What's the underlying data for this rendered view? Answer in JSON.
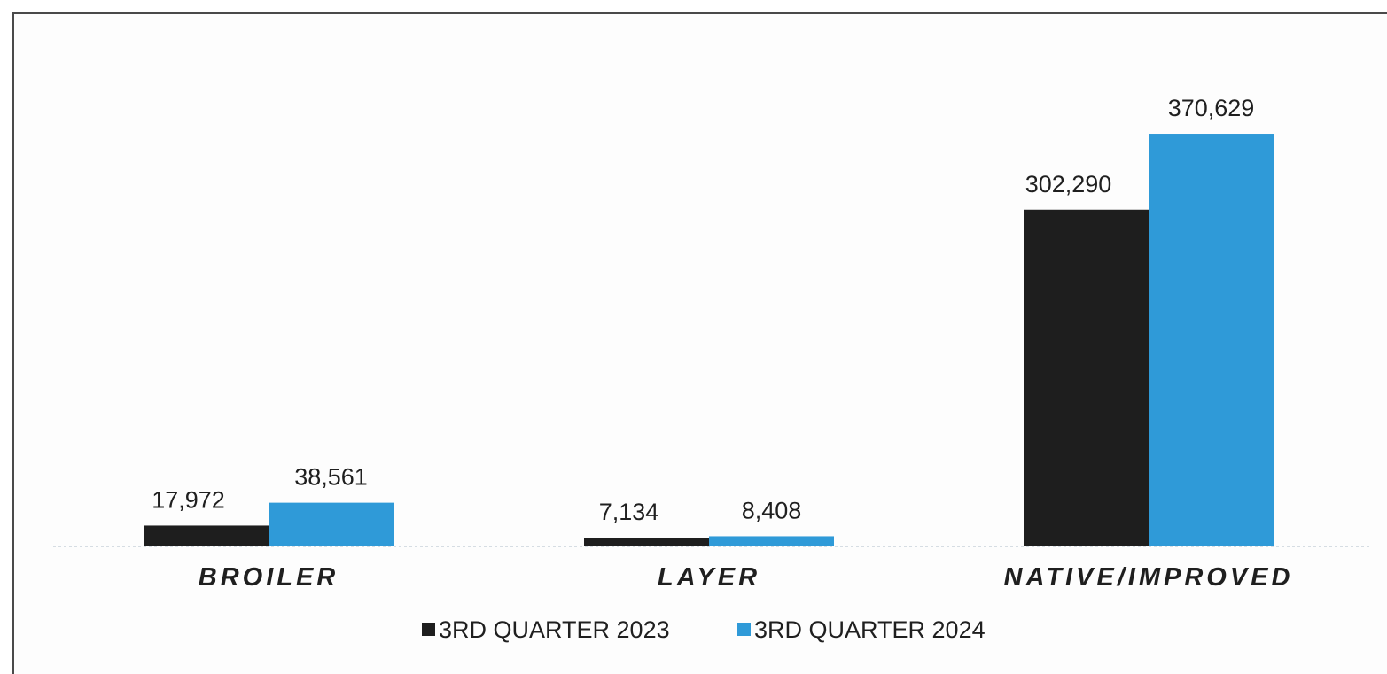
{
  "chart_data": {
    "type": "bar",
    "categories": [
      "BROILER",
      "LAYER",
      "NATIVE/IMPROVED"
    ],
    "series": [
      {
        "name": "3RD QUARTER 2023",
        "values": [
          17972,
          7134,
          302290
        ],
        "labels": [
          "17,972",
          "7,134",
          "302,290"
        ],
        "color": "#1e1e1e"
      },
      {
        "name": "3RD QUARTER 2024",
        "values": [
          38561,
          8408,
          370629
        ],
        "labels": [
          "38,561",
          "8,408",
          "370,629"
        ],
        "color": "#2f9ad8"
      }
    ],
    "ylim": [
      0,
      440000
    ],
    "grid": false,
    "legend_position": "bottom",
    "title": "",
    "xlabel": "",
    "ylabel": ""
  }
}
